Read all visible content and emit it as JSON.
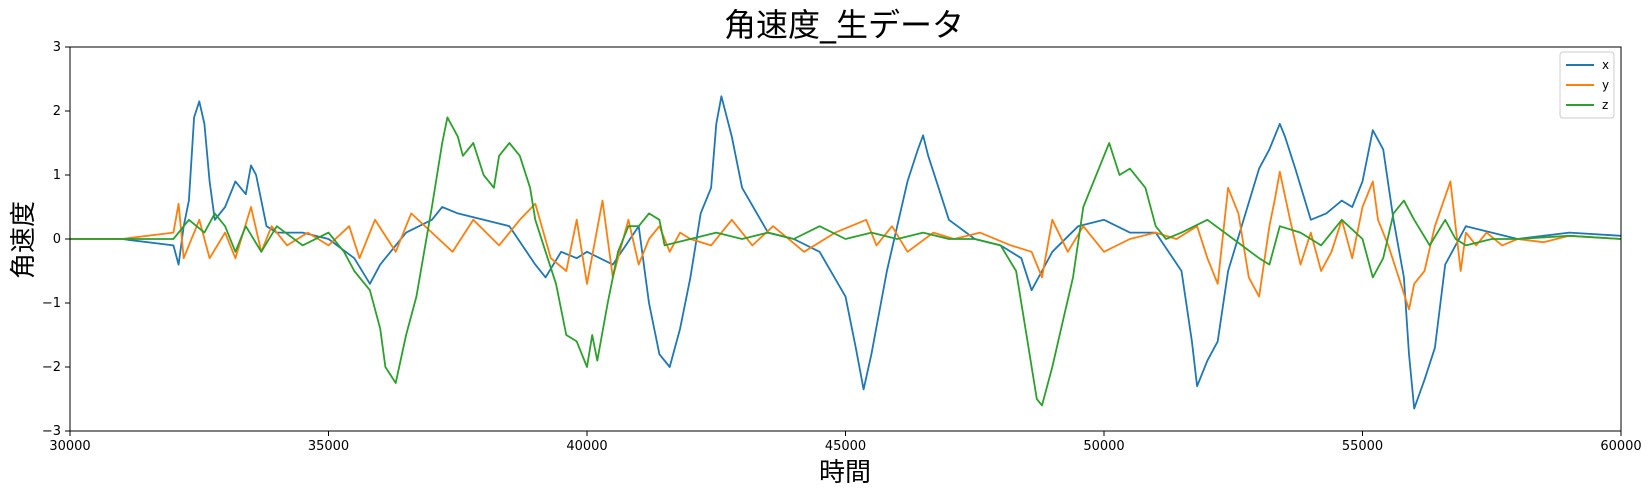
{
  "chart_data": {
    "type": "line",
    "title": "角速度_生データ",
    "xlabel": "時間",
    "ylabel": "角速度",
    "xlim": [
      30000,
      60000
    ],
    "ylim": [
      -3,
      3
    ],
    "xticks": [
      30000,
      35000,
      40000,
      45000,
      50000,
      55000,
      60000
    ],
    "yticks": [
      -3,
      -2,
      -1,
      0,
      1,
      2,
      3
    ],
    "xtick_labels": [
      "30000",
      "35000",
      "40000",
      "45000",
      "50000",
      "55000",
      "60000"
    ],
    "ytick_labels": [
      "−3",
      "−2",
      "−1",
      "0",
      "1",
      "2",
      "3"
    ],
    "grid": false,
    "legend_position": "top-right",
    "series": [
      {
        "name": "x",
        "color": "#1f77b4",
        "x": [
          30000,
          31000,
          32000,
          32100,
          32200,
          32300,
          32400,
          32500,
          32600,
          32700,
          32800,
          33000,
          33200,
          33400,
          33500,
          33600,
          33800,
          34000,
          34500,
          35000,
          35500,
          35800,
          36000,
          36500,
          37000,
          37200,
          37500,
          38000,
          38500,
          39000,
          39200,
          39500,
          39800,
          40000,
          40500,
          41000,
          41200,
          41400,
          41600,
          41800,
          42000,
          42200,
          42400,
          42500,
          42600,
          42800,
          43000,
          43500,
          44000,
          44500,
          45000,
          45200,
          45350,
          45500,
          45800,
          46000,
          46200,
          46400,
          46500,
          46600,
          46800,
          47000,
          47500,
          48000,
          48400,
          48600,
          48800,
          49000,
          49500,
          50000,
          50500,
          51000,
          51500,
          51700,
          51800,
          52000,
          52200,
          52400,
          52700,
          53000,
          53200,
          53400,
          53500,
          53700,
          54000,
          54300,
          54600,
          54800,
          55000,
          55200,
          55400,
          55600,
          55800,
          55900,
          56000,
          56200,
          56400,
          56600,
          57000,
          57500,
          58000,
          59000,
          60000
        ],
        "y": [
          0,
          0,
          -0.1,
          -0.4,
          0.2,
          0.6,
          1.9,
          2.15,
          1.8,
          0.9,
          0.3,
          0.5,
          0.9,
          0.7,
          1.15,
          1.0,
          0.2,
          0.1,
          0.1,
          0.0,
          -0.3,
          -0.7,
          -0.4,
          0.1,
          0.3,
          0.5,
          0.4,
          0.3,
          0.2,
          -0.4,
          -0.6,
          -0.2,
          -0.3,
          -0.2,
          -0.4,
          0.2,
          -1.0,
          -1.8,
          -2.0,
          -1.4,
          -0.6,
          0.4,
          0.8,
          1.8,
          2.23,
          1.6,
          0.8,
          0.1,
          0.0,
          -0.2,
          -0.9,
          -1.7,
          -2.35,
          -1.8,
          -0.5,
          0.2,
          0.9,
          1.4,
          1.62,
          1.3,
          0.8,
          0.3,
          0.0,
          -0.1,
          -0.3,
          -0.8,
          -0.5,
          -0.2,
          0.2,
          0.3,
          0.1,
          0.1,
          -0.5,
          -1.6,
          -2.3,
          -1.9,
          -1.6,
          -0.5,
          0.3,
          1.1,
          1.4,
          1.8,
          1.6,
          1.1,
          0.3,
          0.4,
          0.6,
          0.5,
          0.9,
          1.7,
          1.4,
          0.3,
          -0.6,
          -1.8,
          -2.65,
          -2.2,
          -1.7,
          -0.4,
          0.2,
          0.1,
          0.0,
          0.1,
          0.05
        ]
      },
      {
        "name": "y",
        "color": "#ff7f0e",
        "x": [
          30000,
          31000,
          32000,
          32100,
          32200,
          32300,
          32500,
          32700,
          33000,
          33200,
          33500,
          33700,
          33900,
          34200,
          34600,
          35000,
          35400,
          35600,
          35900,
          36300,
          36600,
          37000,
          37400,
          37800,
          38300,
          38700,
          39000,
          39300,
          39600,
          39800,
          40000,
          40300,
          40500,
          40800,
          41000,
          41200,
          41400,
          41600,
          41800,
          42000,
          42400,
          42800,
          43200,
          43600,
          44200,
          44800,
          45400,
          45600,
          45900,
          46200,
          46700,
          47100,
          47600,
          48200,
          48600,
          48800,
          49000,
          49300,
          49600,
          50000,
          50500,
          51000,
          51400,
          51800,
          52000,
          52200,
          52400,
          52600,
          52800,
          53000,
          53200,
          53300,
          53400,
          53600,
          53800,
          54000,
          54200,
          54400,
          54600,
          54800,
          55000,
          55200,
          55300,
          55500,
          55700,
          55900,
          56000,
          56200,
          56400,
          56700,
          56900,
          57000,
          57200,
          57400,
          57700,
          58000,
          58500,
          59000,
          60000
        ],
        "y": [
          0,
          0,
          0.1,
          0.55,
          -0.3,
          -0.1,
          0.3,
          -0.3,
          0.1,
          -0.3,
          0.5,
          -0.2,
          0.2,
          -0.1,
          0.1,
          -0.1,
          0.2,
          -0.3,
          0.3,
          -0.2,
          0.4,
          0.1,
          -0.2,
          0.3,
          -0.1,
          0.3,
          0.55,
          -0.3,
          -0.5,
          0.3,
          -0.7,
          0.6,
          -0.6,
          0.3,
          -0.4,
          0.0,
          0.2,
          -0.2,
          0.1,
          0.0,
          -0.1,
          0.3,
          -0.1,
          0.2,
          -0.2,
          0.1,
          0.3,
          -0.1,
          0.2,
          -0.2,
          0.1,
          0.0,
          0.1,
          -0.1,
          -0.2,
          -0.6,
          0.3,
          -0.2,
          0.2,
          -0.2,
          0.0,
          0.1,
          0.0,
          0.2,
          -0.3,
          -0.7,
          0.8,
          0.4,
          -0.6,
          -0.9,
          0.2,
          0.6,
          1.05,
          0.3,
          -0.4,
          0.1,
          -0.5,
          -0.2,
          0.3,
          -0.3,
          0.5,
          0.9,
          0.3,
          -0.1,
          -0.6,
          -1.1,
          -0.7,
          -0.5,
          0.2,
          0.9,
          -0.5,
          0.1,
          -0.1,
          0.1,
          -0.1,
          0.0,
          -0.05,
          0.05,
          0
        ]
      },
      {
        "name": "z",
        "color": "#2ca02c",
        "x": [
          30000,
          31000,
          32000,
          32300,
          32600,
          32800,
          33000,
          33200,
          33400,
          33700,
          34000,
          34500,
          35000,
          35300,
          35500,
          35800,
          36000,
          36100,
          36300,
          36500,
          36700,
          37000,
          37200,
          37300,
          37500,
          37600,
          37800,
          38000,
          38200,
          38300,
          38500,
          38700,
          38900,
          39000,
          39200,
          39400,
          39600,
          39800,
          40000,
          40100,
          40200,
          40400,
          40600,
          40800,
          41000,
          41200,
          41400,
          41500,
          42000,
          42500,
          43000,
          43500,
          44000,
          44500,
          45000,
          45500,
          46000,
          46500,
          47000,
          47500,
          48000,
          48300,
          48500,
          48700,
          48800,
          49000,
          49200,
          49400,
          49600,
          50000,
          50100,
          50300,
          50500,
          50800,
          51000,
          51200,
          51500,
          52000,
          52500,
          53000,
          53200,
          53400,
          53800,
          54200,
          54600,
          55000,
          55200,
          55400,
          55600,
          55800,
          56000,
          56300,
          56600,
          56800,
          57000,
          57500,
          58000,
          59000,
          60000
        ],
        "y": [
          0,
          0,
          0,
          0.3,
          0.1,
          0.4,
          0.2,
          -0.2,
          0.2,
          -0.2,
          0.2,
          -0.1,
          0.1,
          -0.2,
          -0.5,
          -0.8,
          -1.4,
          -2.0,
          -2.25,
          -1.5,
          -0.9,
          0.5,
          1.5,
          1.9,
          1.6,
          1.3,
          1.5,
          1.0,
          0.8,
          1.3,
          1.5,
          1.3,
          0.8,
          0.3,
          -0.2,
          -0.7,
          -1.5,
          -1.6,
          -2.0,
          -1.5,
          -1.9,
          -1.0,
          -0.2,
          0.2,
          0.2,
          0.4,
          0.3,
          -0.1,
          0.0,
          0.1,
          0.0,
          0.1,
          0.0,
          0.2,
          0.0,
          0.1,
          0.0,
          0.1,
          0.0,
          0.0,
          -0.1,
          -0.5,
          -1.5,
          -2.5,
          -2.6,
          -2.0,
          -1.3,
          -0.6,
          0.5,
          1.3,
          1.5,
          1.0,
          1.1,
          0.8,
          0.2,
          0.0,
          0.1,
          0.3,
          0.0,
          -0.3,
          -0.4,
          0.2,
          0.1,
          -0.1,
          0.3,
          0.0,
          -0.6,
          -0.3,
          0.4,
          0.6,
          0.3,
          -0.1,
          0.3,
          0.0,
          -0.1,
          0.0,
          0.0,
          0.05,
          0.0
        ]
      }
    ]
  }
}
